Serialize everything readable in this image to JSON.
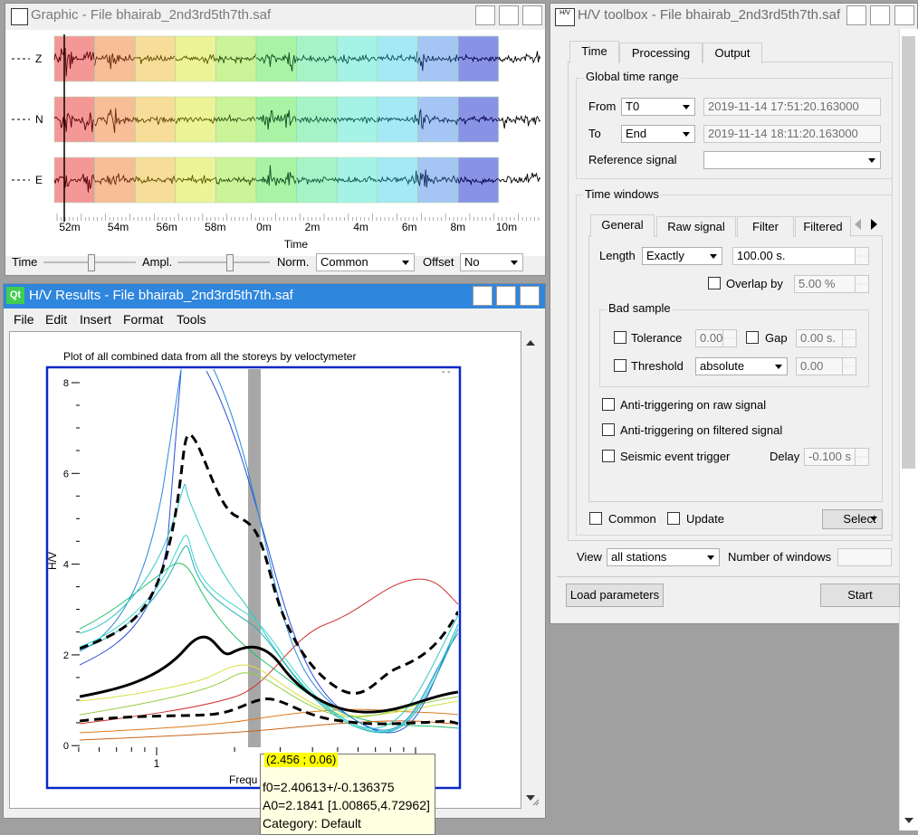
{
  "graphic": {
    "title": "Graphic - File bhairab_2nd3rd5th7th.saf",
    "channels": [
      "Z",
      "N",
      "E"
    ],
    "time_ticks": [
      "52m",
      "54m",
      "56m",
      "58m",
      "0m",
      "2m",
      "4m",
      "6m",
      "8m",
      "10m"
    ],
    "axis_title": "Time",
    "time_slider": "Time",
    "ampl_slider": "Ampl.",
    "norm": {
      "label": "Norm.",
      "value": "Common"
    },
    "offset": {
      "label": "Offset",
      "value": "No"
    }
  },
  "results": {
    "title": "H/V Results - File bhairab_2nd3rd5th7th.saf",
    "icon": "Qt",
    "menu": [
      "File",
      "Edit",
      "Insert",
      "Format",
      "Tools"
    ],
    "plot": {
      "title": "Plot of all combined data from all the storeys by veloctymeter",
      "y_label": "H/V",
      "x_label": "Frequ",
      "y_ticks": [
        "8",
        "6",
        "4",
        "2",
        "0"
      ],
      "x_ticks": [
        "1"
      ]
    },
    "tooltip": {
      "position": "(2.456 ; 0.06)",
      "lines": [
        "f0=2.40613+/-0.136375",
        "A0=2.1841 [1.00865,4.72962]",
        "Category: Default"
      ]
    }
  },
  "toolbox": {
    "title": "H/V toolbox - File bhairab_2nd3rd5th7th.saf",
    "icon": "H/V",
    "tabs": [
      "Time",
      "Processing",
      "Output"
    ],
    "global_time_range": {
      "title": "Global time range",
      "from": {
        "label": "From",
        "mode": "T0",
        "value": "2019-11-14 17:51:20.163000"
      },
      "to": {
        "label": "To",
        "mode": "End",
        "value": "2019-11-14 18:11:20.163000"
      },
      "reference_signal": {
        "label": "Reference signal"
      }
    },
    "time_windows": {
      "title": "Time windows",
      "tabs": [
        "General",
        "Raw signal",
        "Filter",
        "Filtered"
      ],
      "length": {
        "label": "Length",
        "mode": "Exactly",
        "value": "100.00 s."
      },
      "overlap": {
        "label": "Overlap by",
        "value": "5.00 %"
      },
      "bad_sample": {
        "title": "Bad sample",
        "tolerance": {
          "label": "Tolerance",
          "value": "0.00"
        },
        "gap": {
          "label": "Gap",
          "value": "0.00 s."
        },
        "threshold": {
          "label": "Threshold",
          "mode": "absolute",
          "value": "0.00"
        }
      },
      "anti_triggering_raw": "Anti-triggering on raw signal",
      "anti_triggering_filtered": "Anti-triggering on filtered signal",
      "seismic_event_trigger": "Seismic event trigger",
      "delay": {
        "label": "Delay",
        "value": "-0.100 s"
      }
    },
    "common": "Common",
    "update": "Update",
    "select": "Select",
    "view": {
      "label": "View",
      "value": "all stations"
    },
    "number_of_windows": "Number of windows",
    "load_parameters": "Load parameters",
    "start": "Start"
  }
}
